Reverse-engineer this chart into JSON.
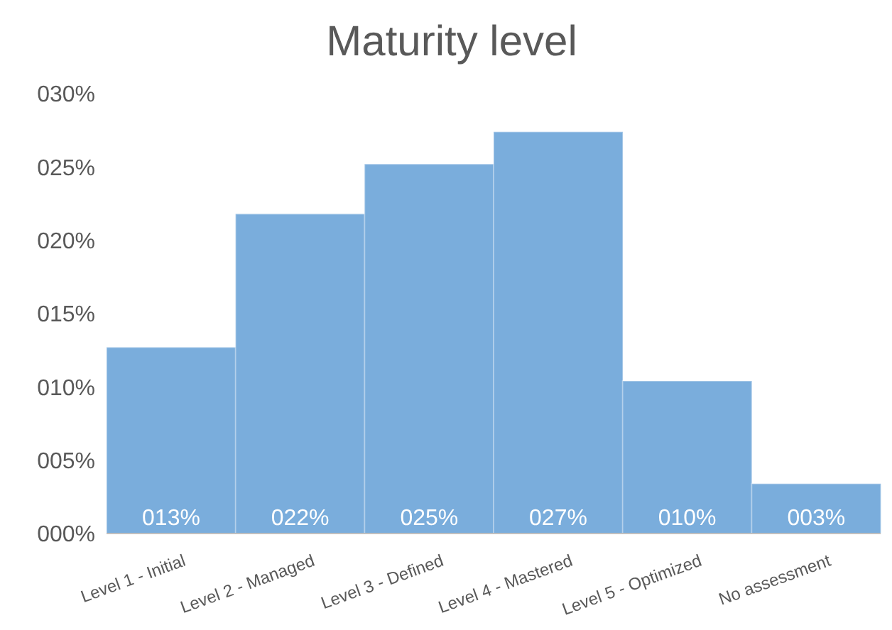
{
  "chart_data": {
    "type": "bar",
    "title": "Maturity level",
    "categories": [
      "Level 1 - Initial",
      "Level 2 - Managed",
      "Level 3 - Defined",
      "Level 4 - Mastered",
      "Level 5 - Optimized",
      "No assessment"
    ],
    "values": [
      12.7,
      21.8,
      25.2,
      27.4,
      10.4,
      3.4
    ],
    "value_labels": [
      "013%",
      "022%",
      "025%",
      "027%",
      "010%",
      "003%"
    ],
    "color": "#7aaddc",
    "ylim": [
      0,
      30
    ],
    "yticks": [
      {
        "value": 0,
        "label": "000%"
      },
      {
        "value": 5,
        "label": "005%"
      },
      {
        "value": 10,
        "label": "010%"
      },
      {
        "value": 15,
        "label": "015%"
      },
      {
        "value": 20,
        "label": "020%"
      },
      {
        "value": 25,
        "label": "025%"
      },
      {
        "value": 30,
        "label": "030%"
      }
    ],
    "grid": false
  }
}
